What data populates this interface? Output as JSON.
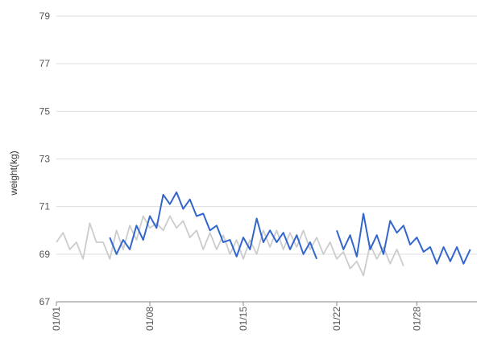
{
  "chart_data": {
    "type": "line",
    "title": "",
    "xlabel": "",
    "ylabel": "weight(kg)",
    "ylim": [
      67,
      79
    ],
    "yticks": [
      67,
      69,
      71,
      73,
      75,
      77,
      79
    ],
    "x_domain": [
      "2023-01-01",
      "2023-01-31"
    ],
    "xticks": [
      {
        "x": "2023-01-01",
        "label": "01/01"
      },
      {
        "x": "2023-01-08",
        "label": "01/08"
      },
      {
        "x": "2023-01-15",
        "label": "01/15"
      },
      {
        "x": "2023-01-22",
        "label": "01/22"
      },
      {
        "x": "2023-01-28",
        "label": "01/28"
      }
    ],
    "grid": true,
    "series": [
      {
        "color": "#cccccc",
        "points": [
          [
            "2023-01-01T00:00",
            69.5
          ],
          [
            "2023-01-01T12:00",
            69.9
          ],
          [
            "2023-01-02T00:00",
            69.2
          ],
          [
            "2023-01-02T12:00",
            69.5
          ],
          [
            "2023-01-03T00:00",
            68.8
          ],
          [
            "2023-01-03T12:00",
            70.3
          ],
          [
            "2023-01-04T00:00",
            69.5
          ],
          [
            "2023-01-04T12:00",
            69.5
          ],
          [
            "2023-01-05T00:00",
            68.8
          ],
          [
            "2023-01-05T12:00",
            70.0
          ],
          [
            "2023-01-06T00:00",
            69.2
          ],
          [
            "2023-01-06T12:00",
            70.2
          ],
          [
            "2023-01-07T00:00",
            69.6
          ],
          [
            "2023-01-07T12:00",
            70.6
          ],
          [
            "2023-01-08T00:00",
            70.1
          ],
          [
            "2023-01-08T12:00",
            70.3
          ],
          [
            "2023-01-09T00:00",
            70.0
          ],
          [
            "2023-01-09T12:00",
            70.6
          ],
          [
            "2023-01-10T00:00",
            70.1
          ],
          [
            "2023-01-10T12:00",
            70.4
          ],
          [
            "2023-01-11T00:00",
            69.7
          ],
          [
            "2023-01-11T12:00",
            70.0
          ],
          [
            "2023-01-12T00:00",
            69.2
          ],
          [
            "2023-01-12T12:00",
            69.9
          ],
          [
            "2023-01-13T00:00",
            69.2
          ],
          [
            "2023-01-13T12:00",
            69.8
          ],
          [
            "2023-01-14T00:00",
            69.0
          ],
          [
            "2023-01-14T12:00",
            69.6
          ],
          [
            "2023-01-15T00:00",
            68.8
          ],
          [
            "2023-01-15T12:00",
            69.6
          ],
          [
            "2023-01-16T00:00",
            69.0
          ],
          [
            "2023-01-16T12:00",
            70.0
          ],
          [
            "2023-01-17T00:00",
            69.3
          ],
          [
            "2023-01-17T12:00",
            70.0
          ],
          [
            "2023-01-18T00:00",
            69.2
          ],
          [
            "2023-01-18T12:00",
            69.9
          ],
          [
            "2023-01-19T00:00",
            69.3
          ],
          [
            "2023-01-19T12:00",
            70.0
          ],
          [
            "2023-01-20T00:00",
            69.2
          ],
          [
            "2023-01-20T12:00",
            69.7
          ],
          [
            "2023-01-21T00:00",
            69.0
          ],
          [
            "2023-01-21T12:00",
            69.5
          ],
          [
            "2023-01-22T00:00",
            68.8
          ],
          [
            "2023-01-22T12:00",
            69.1
          ],
          [
            "2023-01-23T00:00",
            68.4
          ],
          [
            "2023-01-23T12:00",
            68.7
          ],
          [
            "2023-01-24T00:00",
            68.1
          ],
          [
            "2023-01-24T12:00",
            69.4
          ],
          [
            "2023-01-25T00:00",
            68.8
          ],
          [
            "2023-01-25T12:00",
            69.3
          ],
          [
            "2023-01-26T00:00",
            68.6
          ],
          [
            "2023-01-26T12:00",
            69.2
          ],
          [
            "2023-01-27T00:00",
            68.5
          ]
        ]
      },
      {
        "color": "#3366cc",
        "segments": [
          [
            [
              "2023-01-05T00:00",
              69.7
            ],
            [
              "2023-01-05T12:00",
              69.0
            ],
            [
              "2023-01-06T00:00",
              69.6
            ],
            [
              "2023-01-06T12:00",
              69.2
            ],
            [
              "2023-01-07T00:00",
              70.2
            ],
            [
              "2023-01-07T12:00",
              69.6
            ],
            [
              "2023-01-08T00:00",
              70.6
            ],
            [
              "2023-01-08T12:00",
              70.1
            ],
            [
              "2023-01-09T00:00",
              71.5
            ],
            [
              "2023-01-09T12:00",
              71.1
            ],
            [
              "2023-01-10T00:00",
              71.6
            ],
            [
              "2023-01-10T12:00",
              70.9
            ],
            [
              "2023-01-11T00:00",
              71.3
            ],
            [
              "2023-01-11T12:00",
              70.6
            ],
            [
              "2023-01-12T00:00",
              70.7
            ],
            [
              "2023-01-12T12:00",
              70.0
            ],
            [
              "2023-01-13T00:00",
              70.2
            ],
            [
              "2023-01-13T12:00",
              69.5
            ],
            [
              "2023-01-14T00:00",
              69.6
            ],
            [
              "2023-01-14T12:00",
              68.9
            ],
            [
              "2023-01-15T00:00",
              69.7
            ],
            [
              "2023-01-15T12:00",
              69.2
            ],
            [
              "2023-01-16T00:00",
              70.5
            ],
            [
              "2023-01-16T12:00",
              69.5
            ],
            [
              "2023-01-17T00:00",
              70.0
            ],
            [
              "2023-01-17T12:00",
              69.5
            ],
            [
              "2023-01-18T00:00",
              69.9
            ],
            [
              "2023-01-18T12:00",
              69.2
            ],
            [
              "2023-01-19T00:00",
              69.8
            ],
            [
              "2023-01-19T12:00",
              69.0
            ],
            [
              "2023-01-20T00:00",
              69.5
            ],
            [
              "2023-01-20T12:00",
              68.8
            ]
          ],
          [
            [
              "2023-01-22T00:00",
              70.0
            ],
            [
              "2023-01-22T12:00",
              69.2
            ],
            [
              "2023-01-23T00:00",
              69.8
            ],
            [
              "2023-01-23T12:00",
              68.9
            ],
            [
              "2023-01-24T00:00",
              70.7
            ],
            [
              "2023-01-24T12:00",
              69.2
            ],
            [
              "2023-01-25T00:00",
              69.8
            ],
            [
              "2023-01-25T12:00",
              69.0
            ],
            [
              "2023-01-26T00:00",
              70.4
            ],
            [
              "2023-01-26T12:00",
              69.9
            ],
            [
              "2023-01-27T00:00",
              70.2
            ],
            [
              "2023-01-27T12:00",
              69.4
            ],
            [
              "2023-01-28T00:00",
              69.7
            ],
            [
              "2023-01-28T12:00",
              69.1
            ],
            [
              "2023-01-29T00:00",
              69.3
            ],
            [
              "2023-01-29T12:00",
              68.6
            ],
            [
              "2023-01-30T00:00",
              69.3
            ],
            [
              "2023-01-30T12:00",
              68.7
            ],
            [
              "2023-01-31T00:00",
              69.3
            ],
            [
              "2023-01-31T12:00",
              68.6
            ],
            [
              "2023-02-01T00:00",
              69.2
            ]
          ]
        ]
      }
    ]
  }
}
